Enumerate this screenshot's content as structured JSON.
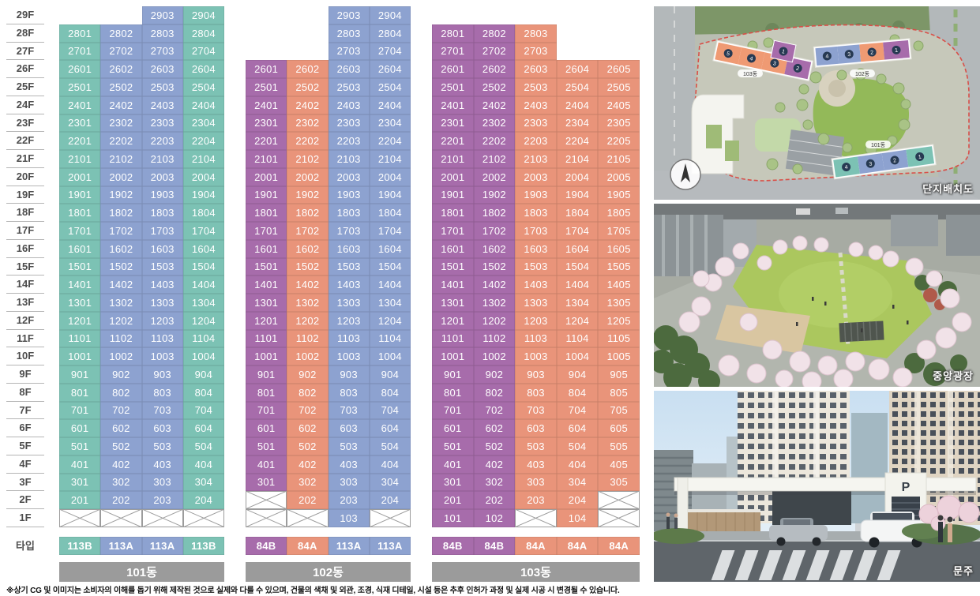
{
  "page": {
    "disclaimer": "※상기 CG 및 이미지는 소비자의 이해를 돕기 위해 제작된 것으로 실제와 다를 수 있으며, 건물의 색채 및 외관, 조경, 식재 디테일, 시설 등은 추후 인허가 과정 및 실제 시공 시 변경될 수 있습니다."
  },
  "palette": {
    "teal": "#7cc2b4",
    "blue": "#8da2d0",
    "purple": "#a76cab",
    "orange": "#e9947a",
    "header_gray": "#9b9b9b",
    "axis_text": "#4c4c4c",
    "x_border": "#9c9c9c"
  },
  "axis": {
    "floors": [
      "29F",
      "28F",
      "27F",
      "26F",
      "25F",
      "24F",
      "23F",
      "22F",
      "21F",
      "20F",
      "19F",
      "18F",
      "17F",
      "16F",
      "15F",
      "14F",
      "13F",
      "12F",
      "11F",
      "10F",
      "9F",
      "8F",
      "7F",
      "6F",
      "5F",
      "4F",
      "3F",
      "2F",
      "1F"
    ],
    "type_label": "타입"
  },
  "buildings": [
    {
      "name": "101동",
      "columns": 4,
      "colors": [
        "teal",
        "blue",
        "blue",
        "teal"
      ],
      "types": [
        "113B",
        "113A",
        "113A",
        "113B"
      ],
      "floors": [
        {
          "floor": "29F",
          "units": [
            null,
            null,
            "2903",
            "2904"
          ]
        },
        {
          "floor": "28F",
          "units": [
            "2801",
            "2802",
            "2803",
            "2804"
          ]
        },
        {
          "floor": "27F",
          "units": [
            "2701",
            "2702",
            "2703",
            "2704"
          ]
        },
        {
          "floor": "26F",
          "units": [
            "2601",
            "2602",
            "2603",
            "2604"
          ]
        },
        {
          "floor": "25F",
          "units": [
            "2501",
            "2502",
            "2503",
            "2504"
          ]
        },
        {
          "floor": "24F",
          "units": [
            "2401",
            "2402",
            "2403",
            "2404"
          ]
        },
        {
          "floor": "23F",
          "units": [
            "2301",
            "2302",
            "2303",
            "2304"
          ]
        },
        {
          "floor": "22F",
          "units": [
            "2201",
            "2202",
            "2203",
            "2204"
          ]
        },
        {
          "floor": "21F",
          "units": [
            "2101",
            "2102",
            "2103",
            "2104"
          ]
        },
        {
          "floor": "20F",
          "units": [
            "2001",
            "2002",
            "2003",
            "2004"
          ]
        },
        {
          "floor": "19F",
          "units": [
            "1901",
            "1902",
            "1903",
            "1904"
          ]
        },
        {
          "floor": "18F",
          "units": [
            "1801",
            "1802",
            "1803",
            "1804"
          ]
        },
        {
          "floor": "17F",
          "units": [
            "1701",
            "1702",
            "1703",
            "1704"
          ]
        },
        {
          "floor": "16F",
          "units": [
            "1601",
            "1602",
            "1603",
            "1604"
          ]
        },
        {
          "floor": "15F",
          "units": [
            "1501",
            "1502",
            "1503",
            "1504"
          ]
        },
        {
          "floor": "14F",
          "units": [
            "1401",
            "1402",
            "1403",
            "1404"
          ]
        },
        {
          "floor": "13F",
          "units": [
            "1301",
            "1302",
            "1303",
            "1304"
          ]
        },
        {
          "floor": "12F",
          "units": [
            "1201",
            "1202",
            "1203",
            "1204"
          ]
        },
        {
          "floor": "11F",
          "units": [
            "1101",
            "1102",
            "1103",
            "1104"
          ]
        },
        {
          "floor": "10F",
          "units": [
            "1001",
            "1002",
            "1003",
            "1004"
          ]
        },
        {
          "floor": "9F",
          "units": [
            "901",
            "902",
            "903",
            "904"
          ]
        },
        {
          "floor": "8F",
          "units": [
            "801",
            "802",
            "803",
            "804"
          ]
        },
        {
          "floor": "7F",
          "units": [
            "701",
            "702",
            "703",
            "704"
          ]
        },
        {
          "floor": "6F",
          "units": [
            "601",
            "602",
            "603",
            "604"
          ]
        },
        {
          "floor": "5F",
          "units": [
            "501",
            "502",
            "503",
            "504"
          ]
        },
        {
          "floor": "4F",
          "units": [
            "401",
            "402",
            "403",
            "404"
          ]
        },
        {
          "floor": "3F",
          "units": [
            "301",
            "302",
            "303",
            "304"
          ]
        },
        {
          "floor": "2F",
          "units": [
            "201",
            "202",
            "203",
            "204"
          ]
        },
        {
          "floor": "1F",
          "units": [
            "X",
            "X",
            "X",
            "X"
          ]
        }
      ]
    },
    {
      "name": "102동",
      "columns": 4,
      "colors": [
        "purple",
        "orange",
        "blue",
        "blue"
      ],
      "types": [
        "84B",
        "84A",
        "113A",
        "113A"
      ],
      "floors": [
        {
          "floor": "29F",
          "units": [
            null,
            null,
            "2903",
            "2904"
          ]
        },
        {
          "floor": "28F",
          "units": [
            null,
            null,
            "2803",
            "2804"
          ]
        },
        {
          "floor": "27F",
          "units": [
            null,
            null,
            "2703",
            "2704"
          ]
        },
        {
          "floor": "26F",
          "units": [
            "2601",
            "2602",
            "2603",
            "2604"
          ]
        },
        {
          "floor": "25F",
          "units": [
            "2501",
            "2502",
            "2503",
            "2504"
          ]
        },
        {
          "floor": "24F",
          "units": [
            "2401",
            "2402",
            "2403",
            "2404"
          ]
        },
        {
          "floor": "23F",
          "units": [
            "2301",
            "2302",
            "2303",
            "2304"
          ]
        },
        {
          "floor": "22F",
          "units": [
            "2201",
            "2202",
            "2203",
            "2204"
          ]
        },
        {
          "floor": "21F",
          "units": [
            "2101",
            "2102",
            "2103",
            "2104"
          ]
        },
        {
          "floor": "20F",
          "units": [
            "2001",
            "2002",
            "2003",
            "2004"
          ]
        },
        {
          "floor": "19F",
          "units": [
            "1901",
            "1902",
            "1903",
            "1904"
          ]
        },
        {
          "floor": "18F",
          "units": [
            "1801",
            "1802",
            "1803",
            "1804"
          ]
        },
        {
          "floor": "17F",
          "units": [
            "1701",
            "1702",
            "1703",
            "1704"
          ]
        },
        {
          "floor": "16F",
          "units": [
            "1601",
            "1602",
            "1603",
            "1604"
          ]
        },
        {
          "floor": "15F",
          "units": [
            "1501",
            "1502",
            "1503",
            "1504"
          ]
        },
        {
          "floor": "14F",
          "units": [
            "1401",
            "1402",
            "1403",
            "1404"
          ]
        },
        {
          "floor": "13F",
          "units": [
            "1301",
            "1302",
            "1303",
            "1304"
          ]
        },
        {
          "floor": "12F",
          "units": [
            "1201",
            "1202",
            "1203",
            "1204"
          ]
        },
        {
          "floor": "11F",
          "units": [
            "1101",
            "1102",
            "1103",
            "1104"
          ]
        },
        {
          "floor": "10F",
          "units": [
            "1001",
            "1002",
            "1003",
            "1004"
          ]
        },
        {
          "floor": "9F",
          "units": [
            "901",
            "902",
            "903",
            "904"
          ]
        },
        {
          "floor": "8F",
          "units": [
            "801",
            "802",
            "803",
            "804"
          ]
        },
        {
          "floor": "7F",
          "units": [
            "701",
            "702",
            "703",
            "704"
          ]
        },
        {
          "floor": "6F",
          "units": [
            "601",
            "602",
            "603",
            "604"
          ]
        },
        {
          "floor": "5F",
          "units": [
            "501",
            "502",
            "503",
            "504"
          ]
        },
        {
          "floor": "4F",
          "units": [
            "401",
            "402",
            "403",
            "404"
          ]
        },
        {
          "floor": "3F",
          "units": [
            "301",
            "302",
            "303",
            "304"
          ]
        },
        {
          "floor": "2F",
          "units": [
            "X",
            "202",
            "203",
            "204"
          ]
        },
        {
          "floor": "1F",
          "units": [
            "X",
            "X",
            "103",
            "X"
          ]
        }
      ]
    },
    {
      "name": "103동",
      "columns": 5,
      "colors": [
        "purple",
        "purple",
        "orange",
        "orange",
        "orange"
      ],
      "types": [
        "84B",
        "84B",
        "84A",
        "84A",
        "84A"
      ],
      "floors": [
        {
          "floor": "29F",
          "units": [
            null,
            null,
            null,
            null,
            null
          ]
        },
        {
          "floor": "28F",
          "units": [
            "2801",
            "2802",
            "2803",
            null,
            null
          ]
        },
        {
          "floor": "27F",
          "units": [
            "2701",
            "2702",
            "2703",
            null,
            null
          ]
        },
        {
          "floor": "26F",
          "units": [
            "2601",
            "2602",
            "2603",
            "2604",
            "2605"
          ]
        },
        {
          "floor": "25F",
          "units": [
            "2501",
            "2502",
            "2503",
            "2504",
            "2505"
          ]
        },
        {
          "floor": "24F",
          "units": [
            "2401",
            "2402",
            "2403",
            "2404",
            "2405"
          ]
        },
        {
          "floor": "23F",
          "units": [
            "2301",
            "2302",
            "2303",
            "2304",
            "2305"
          ]
        },
        {
          "floor": "22F",
          "units": [
            "2201",
            "2202",
            "2203",
            "2204",
            "2205"
          ]
        },
        {
          "floor": "21F",
          "units": [
            "2101",
            "2102",
            "2103",
            "2104",
            "2105"
          ]
        },
        {
          "floor": "20F",
          "units": [
            "2001",
            "2002",
            "2003",
            "2004",
            "2005"
          ]
        },
        {
          "floor": "19F",
          "units": [
            "1901",
            "1902",
            "1903",
            "1904",
            "1905"
          ]
        },
        {
          "floor": "18F",
          "units": [
            "1801",
            "1802",
            "1803",
            "1804",
            "1805"
          ]
        },
        {
          "floor": "17F",
          "units": [
            "1701",
            "1702",
            "1703",
            "1704",
            "1705"
          ]
        },
        {
          "floor": "16F",
          "units": [
            "1601",
            "1602",
            "1603",
            "1604",
            "1605"
          ]
        },
        {
          "floor": "15F",
          "units": [
            "1501",
            "1502",
            "1503",
            "1504",
            "1505"
          ]
        },
        {
          "floor": "14F",
          "units": [
            "1401",
            "1402",
            "1403",
            "1404",
            "1405"
          ]
        },
        {
          "floor": "13F",
          "units": [
            "1301",
            "1302",
            "1303",
            "1304",
            "1305"
          ]
        },
        {
          "floor": "12F",
          "units": [
            "1201",
            "1202",
            "1203",
            "1204",
            "1205"
          ]
        },
        {
          "floor": "11F",
          "units": [
            "1101",
            "1102",
            "1103",
            "1104",
            "1105"
          ]
        },
        {
          "floor": "10F",
          "units": [
            "1001",
            "1002",
            "1003",
            "1004",
            "1005"
          ]
        },
        {
          "floor": "9F",
          "units": [
            "901",
            "902",
            "903",
            "904",
            "905"
          ]
        },
        {
          "floor": "8F",
          "units": [
            "801",
            "802",
            "803",
            "804",
            "805"
          ]
        },
        {
          "floor": "7F",
          "units": [
            "701",
            "702",
            "703",
            "704",
            "705"
          ]
        },
        {
          "floor": "6F",
          "units": [
            "601",
            "602",
            "603",
            "604",
            "605"
          ]
        },
        {
          "floor": "5F",
          "units": [
            "501",
            "502",
            "503",
            "504",
            "505"
          ]
        },
        {
          "floor": "4F",
          "units": [
            "401",
            "402",
            "403",
            "404",
            "405"
          ]
        },
        {
          "floor": "3F",
          "units": [
            "301",
            "302",
            "303",
            "304",
            "305"
          ]
        },
        {
          "floor": "2F",
          "units": [
            "201",
            "202",
            "203",
            "204",
            "X"
          ]
        },
        {
          "floor": "1F",
          "units": [
            "101",
            "102",
            "X",
            "104",
            "X"
          ]
        }
      ]
    }
  ],
  "side_images": [
    {
      "caption": "단지배치도",
      "labels": {
        "b101": "101동",
        "b102": "102동",
        "b103": "103동"
      },
      "markers": {
        "bar103": [
          "5",
          "4",
          "3",
          "2"
        ],
        "block103": "1",
        "bar102": [
          "4",
          "3",
          "2",
          "1"
        ],
        "bar101": [
          "4",
          "3",
          "2",
          "1"
        ]
      }
    },
    {
      "caption": "중앙광장"
    },
    {
      "caption": "문주",
      "parking_sign": "P"
    }
  ]
}
